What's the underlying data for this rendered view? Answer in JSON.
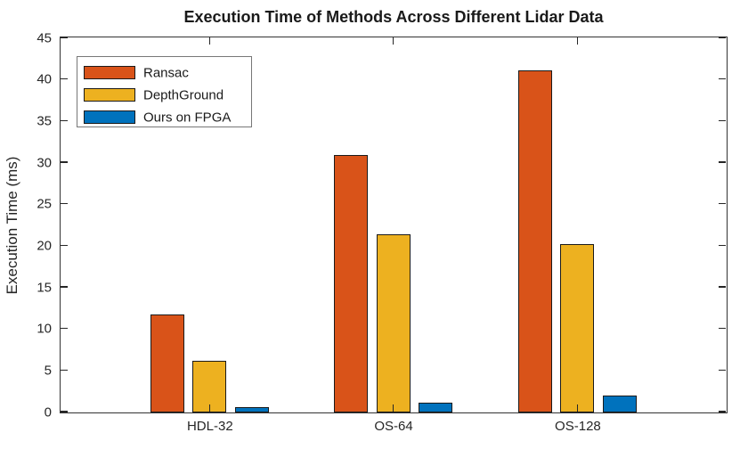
{
  "chart_data": {
    "type": "bar",
    "title": "Execution Time of Methods Across Different Lidar Data",
    "xlabel": "",
    "ylabel": "Execution Time (ms)",
    "categories": [
      "HDL-32",
      "OS-64",
      "OS-128"
    ],
    "series": [
      {
        "name": "Ransac",
        "color": "#D95319",
        "values": [
          11.8,
          31.0,
          41.1
        ]
      },
      {
        "name": "DepthGround",
        "color": "#EDB120",
        "values": [
          6.2,
          21.4,
          20.2
        ]
      },
      {
        "name": "Ours on FPGA",
        "color": "#0072BD",
        "values": [
          0.6,
          1.2,
          2.0
        ]
      }
    ],
    "ylim": [
      0,
      45
    ],
    "yticks": [
      0,
      5,
      10,
      15,
      20,
      25,
      30,
      35,
      40,
      45
    ],
    "grid": false,
    "legend": {
      "position": "top-left",
      "entries": [
        "Ransac",
        "DepthGround",
        "Ours on FPGA"
      ]
    },
    "colors": {
      "axis": "#333333",
      "tick": "#262626",
      "bar_edge": "#1a1a1a",
      "title_text": "#1a1a1a",
      "legend_border": "#777777",
      "background": "#ffffff"
    }
  }
}
